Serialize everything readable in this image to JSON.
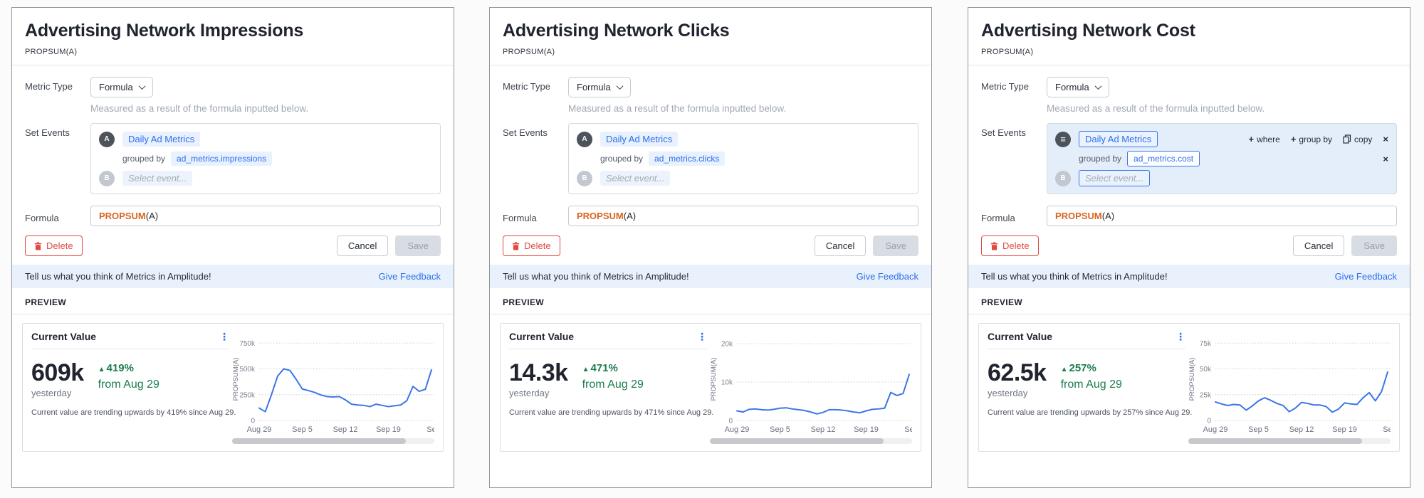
{
  "icons": {
    "kebab": "⋮",
    "arrow_up": "▲",
    "close": "×",
    "plus": "+",
    "menu": "≡"
  },
  "colors": {
    "accent_blue": "#2b6fed",
    "line_blue": "#3b76e8",
    "green": "#1a7d4e",
    "red": "#e2493f",
    "formula_orange": "#d9641f",
    "highlight_bg": "#e4eefb",
    "feedback_bg": "#e9f2fc"
  },
  "panels": [
    {
      "title": "Advertising Network Impressions",
      "subtitle": "PROPSUM(A)",
      "form": {
        "metric_type_label": "Metric Type",
        "metric_type_value": "Formula",
        "metric_type_help": "Measured as a result of the formula inputted below.",
        "set_events_label": "Set Events",
        "event_a_badge": "A",
        "event_a_name": "Daily Ad Metrics",
        "grouped_by_label": "grouped by",
        "grouped_by_value": "ad_metrics.impressions",
        "event_b_badge": "B",
        "event_b_placeholder": "Select event...",
        "formula_label": "Formula",
        "formula_fn": "PROPSUM",
        "formula_args": "(A)",
        "delete_label": "Delete",
        "cancel_label": "Cancel",
        "save_label": "Save"
      },
      "feedback": {
        "text": "Tell us what you think of Metrics in Amplitude!",
        "link": "Give Feedback"
      },
      "preview": {
        "section_label": "PREVIEW",
        "card_title": "Current Value",
        "value": "609k",
        "value_caption": "yesterday",
        "trend_pct": "419%",
        "trend_from": "from Aug 29",
        "note": "Current value are trending upwards by 419% since Aug 29."
      },
      "chart_data": {
        "type": "line",
        "ylabel": "PROPSUM(A)",
        "y_unit": "k",
        "ymax_k": 800,
        "yticks": [
          {
            "label": "0",
            "value": 0
          },
          {
            "label": "250k",
            "value": 250
          },
          {
            "label": "500k",
            "value": 500
          },
          {
            "label": "750k",
            "value": 750
          }
        ],
        "xticks": [
          {
            "label": "Aug 29",
            "day": 0
          },
          {
            "label": "Sep 5",
            "day": 7
          },
          {
            "label": "Sep 12",
            "day": 14
          },
          {
            "label": "Sep 19",
            "day": 21
          },
          {
            "label": "Se",
            "day": 28
          }
        ],
        "values_k": [
          120,
          85,
          250,
          430,
          500,
          485,
          400,
          305,
          290,
          272,
          248,
          232,
          228,
          232,
          200,
          158,
          150,
          146,
          134,
          158,
          146,
          134,
          142,
          150,
          192,
          330,
          282,
          302,
          490
        ],
        "line_color": "#3b76e8",
        "grid": "dotted"
      }
    },
    {
      "title": "Advertising Network Clicks",
      "subtitle": "PROPSUM(A)",
      "form": {
        "metric_type_label": "Metric Type",
        "metric_type_value": "Formula",
        "metric_type_help": "Measured as a result of the formula inputted below.",
        "set_events_label": "Set Events",
        "event_a_badge": "A",
        "event_a_name": "Daily Ad Metrics",
        "grouped_by_label": "grouped by",
        "grouped_by_value": "ad_metrics.clicks",
        "event_b_badge": "B",
        "event_b_placeholder": "Select event...",
        "formula_label": "Formula",
        "formula_fn": "PROPSUM",
        "formula_args": "(A)",
        "delete_label": "Delete",
        "cancel_label": "Cancel",
        "save_label": "Save"
      },
      "feedback": {
        "text": "Tell us what you think of Metrics in Amplitude!",
        "link": "Give Feedback"
      },
      "preview": {
        "section_label": "PREVIEW",
        "card_title": "Current Value",
        "value": "14.3k",
        "value_caption": "yesterday",
        "trend_pct": "471%",
        "trend_from": "from Aug 29",
        "note": "Current value are trending upwards by 471% since Aug 29."
      },
      "chart_data": {
        "type": "line",
        "ylabel": "PROPSUM(A)",
        "y_unit": "k",
        "ymax_k": 21.5,
        "yticks": [
          {
            "label": "0",
            "value": 0
          },
          {
            "label": "10k",
            "value": 10
          },
          {
            "label": "20k",
            "value": 20
          }
        ],
        "xticks": [
          {
            "label": "Aug 29",
            "day": 0
          },
          {
            "label": "Sep 5",
            "day": 7
          },
          {
            "label": "Sep 12",
            "day": 14
          },
          {
            "label": "Sep 19",
            "day": 21
          },
          {
            "label": "Se",
            "day": 28
          }
        ],
        "values_k": [
          2.5,
          2.2,
          2.9,
          3.0,
          2.8,
          2.7,
          2.9,
          3.2,
          3.3,
          3.0,
          2.8,
          2.6,
          2.2,
          1.7,
          2.1,
          2.8,
          2.8,
          2.7,
          2.5,
          2.2,
          2.0,
          2.5,
          2.9,
          3.0,
          3.2,
          7.3,
          6.5,
          7.0,
          12.0
        ],
        "line_color": "#3b76e8",
        "grid": "dotted"
      }
    },
    {
      "title": "Advertising Network Cost",
      "subtitle": "PROPSUM(A)",
      "form": {
        "metric_type_label": "Metric Type",
        "metric_type_value": "Formula",
        "metric_type_help": "Measured as a result of the formula inputted below.",
        "set_events_label": "Set Events",
        "event_a_name": "Daily Ad Metrics",
        "grouped_by_label": "grouped by",
        "grouped_by_value": "ad_metrics.cost",
        "event_b_badge": "B",
        "event_b_placeholder": "Select event...",
        "actions": {
          "where": "where",
          "group_by": "group by",
          "copy": "copy"
        },
        "formula_label": "Formula",
        "formula_fn": "PROPSUM",
        "formula_args": "(A)",
        "delete_label": "Delete",
        "cancel_label": "Cancel",
        "save_label": "Save"
      },
      "feedback": {
        "text": "Tell us what you think of Metrics in Amplitude!",
        "link": "Give Feedback"
      },
      "preview": {
        "section_label": "PREVIEW",
        "card_title": "Current Value",
        "value": "62.5k",
        "value_caption": "yesterday",
        "trend_pct": "257%",
        "trend_from": "from Aug 29",
        "note": "Current value are trending upwards by 257% since Aug 29."
      },
      "chart_data": {
        "type": "line",
        "ylabel": "PROPSUM(A)",
        "y_unit": "k",
        "ymax_k": 80,
        "yticks": [
          {
            "label": "0",
            "value": 0
          },
          {
            "label": "25k",
            "value": 25
          },
          {
            "label": "50k",
            "value": 50
          },
          {
            "label": "75k",
            "value": 75
          }
        ],
        "xticks": [
          {
            "label": "Aug 29",
            "day": 0
          },
          {
            "label": "Sep 5",
            "day": 7
          },
          {
            "label": "Sep 12",
            "day": 14
          },
          {
            "label": "Sep 19",
            "day": 21
          },
          {
            "label": "Se",
            "day": 28
          }
        ],
        "values_k": [
          18,
          16,
          14.5,
          15.5,
          15,
          10,
          14,
          19,
          22,
          19.5,
          16.5,
          14.5,
          8.5,
          12,
          17.5,
          16.5,
          15,
          15,
          13.5,
          8,
          11,
          17,
          16,
          15.5,
          22,
          27,
          19,
          28,
          47
        ],
        "line_color": "#3b76e8",
        "grid": "dotted"
      }
    }
  ]
}
